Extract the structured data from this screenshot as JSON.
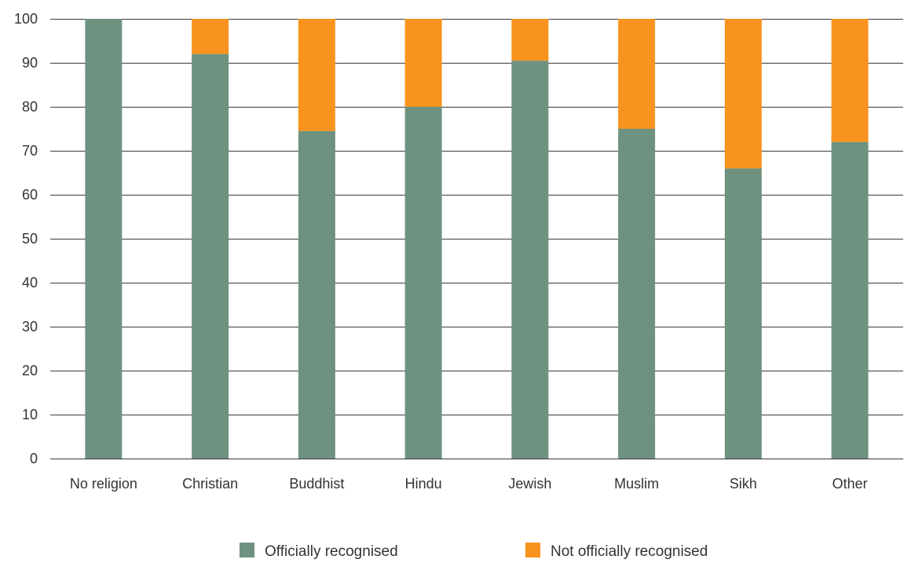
{
  "chart_data": {
    "type": "bar",
    "stacked": true,
    "categories": [
      "No religion",
      "Christian",
      "Buddhist",
      "Hindu",
      "Jewish",
      "Muslim",
      "Sikh",
      "Other"
    ],
    "series": [
      {
        "name": "Officially recognised",
        "color": "#6f9280",
        "values": [
          100,
          92,
          74.5,
          80,
          90.5,
          75,
          66,
          72
        ]
      },
      {
        "name": "Not officially recognised",
        "color": "#f7931e",
        "values": [
          0,
          8,
          25.5,
          20,
          9.5,
          25,
          34,
          28
        ]
      }
    ],
    "y_ticks": [
      "0",
      "10",
      "20",
      "30",
      "40",
      "50",
      "60",
      "70",
      "80",
      "90",
      "100"
    ],
    "ylim": [
      0,
      100
    ],
    "grid": true,
    "legend_position": "bottom",
    "title": "",
    "xlabel": "",
    "ylabel": ""
  }
}
